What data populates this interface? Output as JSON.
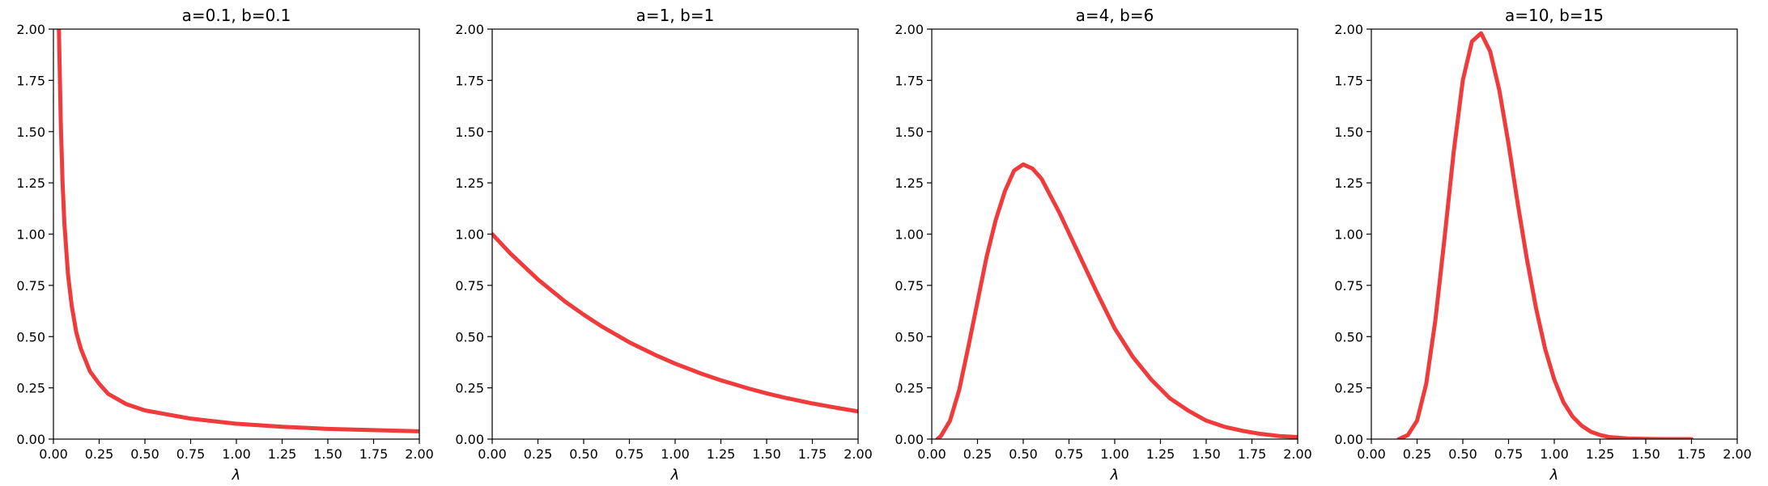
{
  "chart_data": [
    {
      "type": "line",
      "title": "a=0.1, b=0.1",
      "xlabel": "λ",
      "ylabel": "",
      "xlim": [
        0,
        2
      ],
      "ylim": [
        0,
        2
      ],
      "grid": false,
      "xticks": [
        "0.00",
        "0.25",
        "0.50",
        "0.75",
        "1.00",
        "1.25",
        "1.50",
        "1.75",
        "2.00"
      ],
      "yticks": [
        "0.00",
        "0.25",
        "0.50",
        "0.75",
        "1.00",
        "1.25",
        "1.50",
        "1.75",
        "2.00"
      ],
      "series": [
        {
          "color": "#ef3b3b",
          "x": [
            0.03,
            0.04,
            0.05,
            0.06,
            0.08,
            0.1,
            0.125,
            0.15,
            0.2,
            0.25,
            0.3,
            0.4,
            0.5,
            0.75,
            1.0,
            1.25,
            1.5,
            1.75,
            2.0
          ],
          "y": [
            2.0,
            1.55,
            1.25,
            1.05,
            0.8,
            0.65,
            0.52,
            0.44,
            0.33,
            0.27,
            0.22,
            0.17,
            0.14,
            0.1,
            0.075,
            0.06,
            0.05,
            0.044,
            0.038
          ]
        }
      ]
    },
    {
      "type": "line",
      "title": "a=1, b=1",
      "xlabel": "λ",
      "ylabel": "",
      "xlim": [
        0,
        2
      ],
      "ylim": [
        0,
        2
      ],
      "grid": false,
      "xticks": [
        "0.00",
        "0.25",
        "0.50",
        "0.75",
        "1.00",
        "1.25",
        "1.50",
        "1.75",
        "2.00"
      ],
      "yticks": [
        "0.00",
        "0.25",
        "0.50",
        "0.75",
        "1.00",
        "1.25",
        "1.50",
        "1.75",
        "2.00"
      ],
      "series": [
        {
          "color": "#ef3b3b",
          "x": [
            0.0,
            0.1,
            0.25,
            0.4,
            0.5,
            0.6,
            0.75,
            0.9,
            1.0,
            1.15,
            1.25,
            1.4,
            1.5,
            1.6,
            1.75,
            1.9,
            2.0
          ],
          "y": [
            1.0,
            0.905,
            0.779,
            0.67,
            0.607,
            0.549,
            0.472,
            0.407,
            0.368,
            0.317,
            0.287,
            0.247,
            0.223,
            0.202,
            0.174,
            0.15,
            0.135
          ]
        }
      ]
    },
    {
      "type": "line",
      "title": "a=4, b=6",
      "xlabel": "λ",
      "ylabel": "",
      "xlim": [
        0,
        2
      ],
      "ylim": [
        0,
        2
      ],
      "grid": false,
      "xticks": [
        "0.00",
        "0.25",
        "0.50",
        "0.75",
        "1.00",
        "1.25",
        "1.50",
        "1.75",
        "2.00"
      ],
      "yticks": [
        "0.00",
        "0.25",
        "0.50",
        "0.75",
        "1.00",
        "1.25",
        "1.50",
        "1.75",
        "2.00"
      ],
      "series": [
        {
          "color": "#ef3b3b",
          "x": [
            0.03,
            0.05,
            0.1,
            0.15,
            0.2,
            0.25,
            0.3,
            0.35,
            0.4,
            0.45,
            0.5,
            0.55,
            0.6,
            0.7,
            0.8,
            0.9,
            1.0,
            1.1,
            1.2,
            1.3,
            1.4,
            1.5,
            1.6,
            1.7,
            1.8,
            1.9,
            2.0
          ],
          "y": [
            0.0,
            0.015,
            0.09,
            0.24,
            0.45,
            0.67,
            0.89,
            1.07,
            1.21,
            1.31,
            1.34,
            1.32,
            1.27,
            1.1,
            0.91,
            0.72,
            0.54,
            0.4,
            0.29,
            0.2,
            0.14,
            0.09,
            0.06,
            0.04,
            0.025,
            0.015,
            0.01
          ]
        }
      ]
    },
    {
      "type": "line",
      "title": "a=10, b=15",
      "xlabel": "λ",
      "ylabel": "",
      "xlim": [
        0,
        2
      ],
      "ylim": [
        0,
        2
      ],
      "grid": false,
      "xticks": [
        "0.00",
        "0.25",
        "0.50",
        "0.75",
        "1.00",
        "1.25",
        "1.50",
        "1.75",
        "2.00"
      ],
      "yticks": [
        "0.00",
        "0.25",
        "0.50",
        "0.75",
        "1.00",
        "1.25",
        "1.50",
        "1.75",
        "2.00"
      ],
      "series": [
        {
          "color": "#ef3b3b",
          "x": [
            0.15,
            0.2,
            0.25,
            0.3,
            0.35,
            0.4,
            0.45,
            0.5,
            0.55,
            0.6,
            0.65,
            0.7,
            0.75,
            0.8,
            0.85,
            0.9,
            0.95,
            1.0,
            1.05,
            1.1,
            1.15,
            1.2,
            1.25,
            1.3,
            1.4,
            1.5,
            1.6,
            1.75
          ],
          "y": [
            0.0,
            0.02,
            0.09,
            0.27,
            0.58,
            0.98,
            1.4,
            1.75,
            1.94,
            1.98,
            1.89,
            1.7,
            1.44,
            1.15,
            0.88,
            0.64,
            0.44,
            0.29,
            0.18,
            0.11,
            0.065,
            0.036,
            0.02,
            0.01,
            0.003,
            0.001,
            0.0,
            0.0
          ]
        }
      ]
    }
  ]
}
